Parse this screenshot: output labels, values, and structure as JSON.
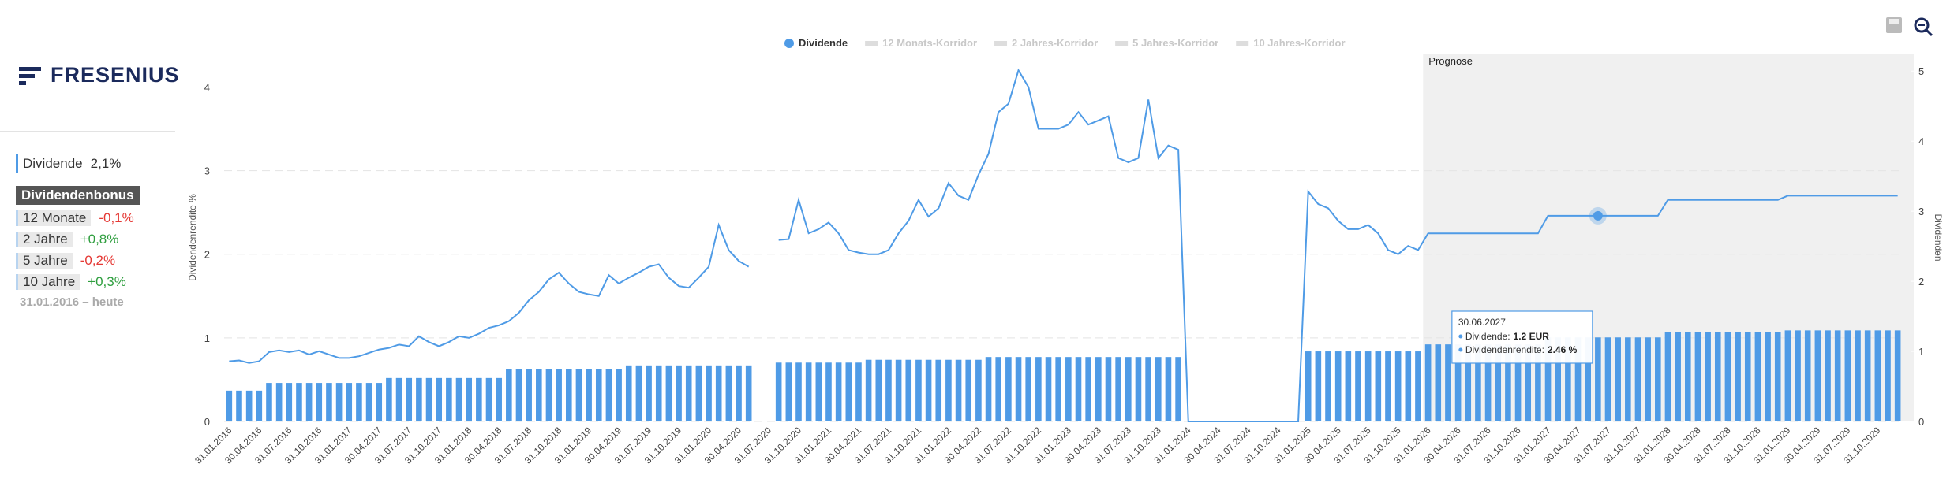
{
  "logo": "FRESENIUS",
  "summary": {
    "label": "Dividende",
    "value": "2,1%"
  },
  "bonus": {
    "title": "Dividendenbonus",
    "rows": [
      {
        "label": "12 Monate",
        "value": "-0,1%",
        "trend": "down"
      },
      {
        "label": "2 Jahre",
        "value": "+0,8%",
        "trend": "up"
      },
      {
        "label": "5 Jahre",
        "value": "-0,2%",
        "trend": "down"
      },
      {
        "label": "10 Jahre",
        "value": "+0,3%",
        "trend": "up"
      }
    ],
    "period": "31.01.2016 – heute"
  },
  "chart_data": {
    "type": "combo",
    "y_label": "Dividendenrendite %",
    "y2_label": "Dividenden",
    "annotation": "Prognose",
    "legend_inactive": [
      "12 Monats-Korridor",
      "2 Jahres-Korridor",
      "5 Jahres-Korridor",
      "10 Jahres-Korridor"
    ],
    "grid": true,
    "ylim": [
      0,
      4.4
    ],
    "yticks": [
      0,
      1,
      2,
      3,
      4
    ],
    "y2lim": [
      0,
      5.25
    ],
    "y2ticks": [
      0,
      1,
      2,
      3,
      4,
      5
    ],
    "categories": [
      "31.01.2016",
      null,
      null,
      "30.04.2016",
      null,
      null,
      "31.07.2016",
      null,
      null,
      "31.10.2016",
      null,
      null,
      "31.01.2017",
      null,
      null,
      "30.04.2017",
      null,
      null,
      "31.07.2017",
      null,
      null,
      "31.10.2017",
      null,
      null,
      "31.01.2018",
      null,
      null,
      "30.04.2018",
      null,
      null,
      "31.07.2018",
      null,
      null,
      "31.10.2018",
      null,
      null,
      "31.01.2019",
      null,
      null,
      "30.04.2019",
      null,
      null,
      "31.07.2019",
      null,
      null,
      "31.10.2019",
      null,
      null,
      "31.01.2020",
      null,
      null,
      "30.04.2020",
      null,
      null,
      "31.07.2020",
      null,
      null,
      "31.10.2020",
      null,
      null,
      "31.01.2021",
      null,
      null,
      "30.04.2021",
      null,
      null,
      "31.07.2021",
      null,
      null,
      "31.10.2021",
      null,
      null,
      "31.01.2022",
      null,
      null,
      "30.04.2022",
      null,
      null,
      "31.07.2022",
      null,
      null,
      "31.10.2022",
      null,
      null,
      "31.01.2023",
      null,
      null,
      "30.04.2023",
      null,
      null,
      "31.07.2023",
      null,
      null,
      "31.10.2023",
      null,
      null,
      "31.01.2024",
      null,
      null,
      "30.04.2024",
      null,
      null,
      "31.07.2024",
      null,
      null,
      "31.10.2024",
      null,
      null,
      "31.01.2025",
      null,
      null,
      "30.04.2025",
      null,
      null,
      "31.07.2025",
      null,
      null,
      "31.10.2025",
      null,
      null,
      "31.01.2026",
      null,
      null,
      "30.04.2026",
      null,
      null,
      "31.07.2026",
      null,
      null,
      "31.10.2026",
      null,
      null,
      "31.01.2027",
      null,
      null,
      "30.04.2027",
      null,
      null,
      "31.07.2027",
      null,
      null,
      "31.10.2027",
      null,
      null,
      "31.01.2028",
      null,
      null,
      "30.04.2028",
      null,
      null,
      "31.07.2028",
      null,
      null,
      "31.10.2028",
      null,
      null,
      "31.01.2029",
      null,
      null,
      "30.04.2029",
      null,
      null,
      "31.07.2029",
      null,
      null,
      "31.10.2029",
      null,
      null
    ],
    "series": [
      {
        "name": "Dividende",
        "type": "bar",
        "axis": "y2",
        "color": "#4f9be6",
        "values": [
          0.44,
          0.44,
          0.44,
          0.44,
          0.55,
          0.55,
          0.55,
          0.55,
          0.55,
          0.55,
          0.55,
          0.55,
          0.55,
          0.55,
          0.55,
          0.55,
          0.62,
          0.62,
          0.62,
          0.62,
          0.62,
          0.62,
          0.62,
          0.62,
          0.62,
          0.62,
          0.62,
          0.62,
          0.75,
          0.75,
          0.75,
          0.75,
          0.75,
          0.75,
          0.75,
          0.75,
          0.75,
          0.75,
          0.75,
          0.75,
          0.8,
          0.8,
          0.8,
          0.8,
          0.8,
          0.8,
          0.8,
          0.8,
          0.8,
          0.8,
          0.8,
          0.8,
          0.8,
          null,
          null,
          0.84,
          0.84,
          0.84,
          0.84,
          0.84,
          0.84,
          0.84,
          0.84,
          0.84,
          0.88,
          0.88,
          0.88,
          0.88,
          0.88,
          0.88,
          0.88,
          0.88,
          0.88,
          0.88,
          0.88,
          0.88,
          0.92,
          0.92,
          0.92,
          0.92,
          0.92,
          0.92,
          0.92,
          0.92,
          0.92,
          0.92,
          0.92,
          0.92,
          0.92,
          0.92,
          0.92,
          0.92,
          0.92,
          0.92,
          0.92,
          0.92,
          0,
          0,
          0,
          0,
          0,
          0,
          0,
          0,
          0,
          0,
          0,
          0,
          1,
          1,
          1,
          1,
          1,
          1,
          1,
          1,
          1,
          1,
          1,
          1,
          1.1,
          1.1,
          1.1,
          1.1,
          1.1,
          1.1,
          1.1,
          1.1,
          1.1,
          1.1,
          1.1,
          1.1,
          1.2,
          1.2,
          1.2,
          1.2,
          1.2,
          1.2,
          1.2,
          1.2,
          1.2,
          1.2,
          1.2,
          1.2,
          1.28,
          1.28,
          1.28,
          1.28,
          1.28,
          1.28,
          1.28,
          1.28,
          1.28,
          1.28,
          1.28,
          1.28,
          1.3,
          1.3,
          1.3,
          1.3,
          1.3,
          1.3,
          1.3,
          1.3,
          1.3,
          1.3,
          1.3,
          1.3
        ]
      },
      {
        "type": "line",
        "color": "#4f9be6",
        "values": [
          0.72,
          0.73,
          0.7,
          0.72,
          0.83,
          0.85,
          0.83,
          0.85,
          0.8,
          0.84,
          0.8,
          0.76,
          0.76,
          0.78,
          0.82,
          0.86,
          0.88,
          0.92,
          0.9,
          1.02,
          0.95,
          0.9,
          0.95,
          1.02,
          1.0,
          1.05,
          1.12,
          1.15,
          1.2,
          1.3,
          1.45,
          1.55,
          1.7,
          1.78,
          1.65,
          1.55,
          1.52,
          1.5,
          1.75,
          1.65,
          1.72,
          1.78,
          1.85,
          1.88,
          1.72,
          1.62,
          1.6,
          1.72,
          1.85,
          2.35,
          2.05,
          1.92,
          1.85,
          null,
          null,
          2.17,
          2.18,
          2.65,
          2.25,
          2.3,
          2.38,
          2.25,
          2.05,
          2.02,
          2.0,
          2.0,
          2.05,
          2.25,
          2.4,
          2.65,
          2.45,
          2.55,
          2.85,
          2.7,
          2.65,
          2.95,
          3.2,
          3.7,
          3.8,
          4.2,
          4.0,
          3.5,
          3.5,
          3.5,
          3.55,
          3.7,
          3.55,
          3.6,
          3.65,
          3.15,
          3.1,
          3.15,
          3.85,
          3.15,
          3.3,
          3.25,
          0,
          0,
          0,
          0,
          0,
          0,
          0,
          0,
          0,
          0,
          0,
          0,
          2.75,
          2.6,
          2.55,
          2.4,
          2.3,
          2.3,
          2.35,
          2.25,
          2.05,
          2.0,
          2.1,
          2.05,
          2.25,
          2.25,
          2.25,
          2.25,
          2.25,
          2.25,
          2.25,
          2.25,
          2.25,
          2.25,
          2.25,
          2.25,
          2.46,
          2.46,
          2.46,
          2.46,
          2.46,
          2.46,
          2.46,
          2.46,
          2.46,
          2.46,
          2.46,
          2.46,
          2.65,
          2.65,
          2.65,
          2.65,
          2.65,
          2.65,
          2.65,
          2.65,
          2.65,
          2.65,
          2.65,
          2.65,
          2.7,
          2.7,
          2.7,
          2.7,
          2.7,
          2.7,
          2.7,
          2.7,
          2.7,
          2.7,
          2.7,
          2.7
        ]
      }
    ],
    "tooltip": {
      "date": "30.06.2027",
      "items": [
        {
          "label": "Dividende:",
          "value": "1.2 EUR"
        },
        {
          "label": "Dividendenrendite:",
          "value": "2.46 %"
        }
      ]
    }
  }
}
